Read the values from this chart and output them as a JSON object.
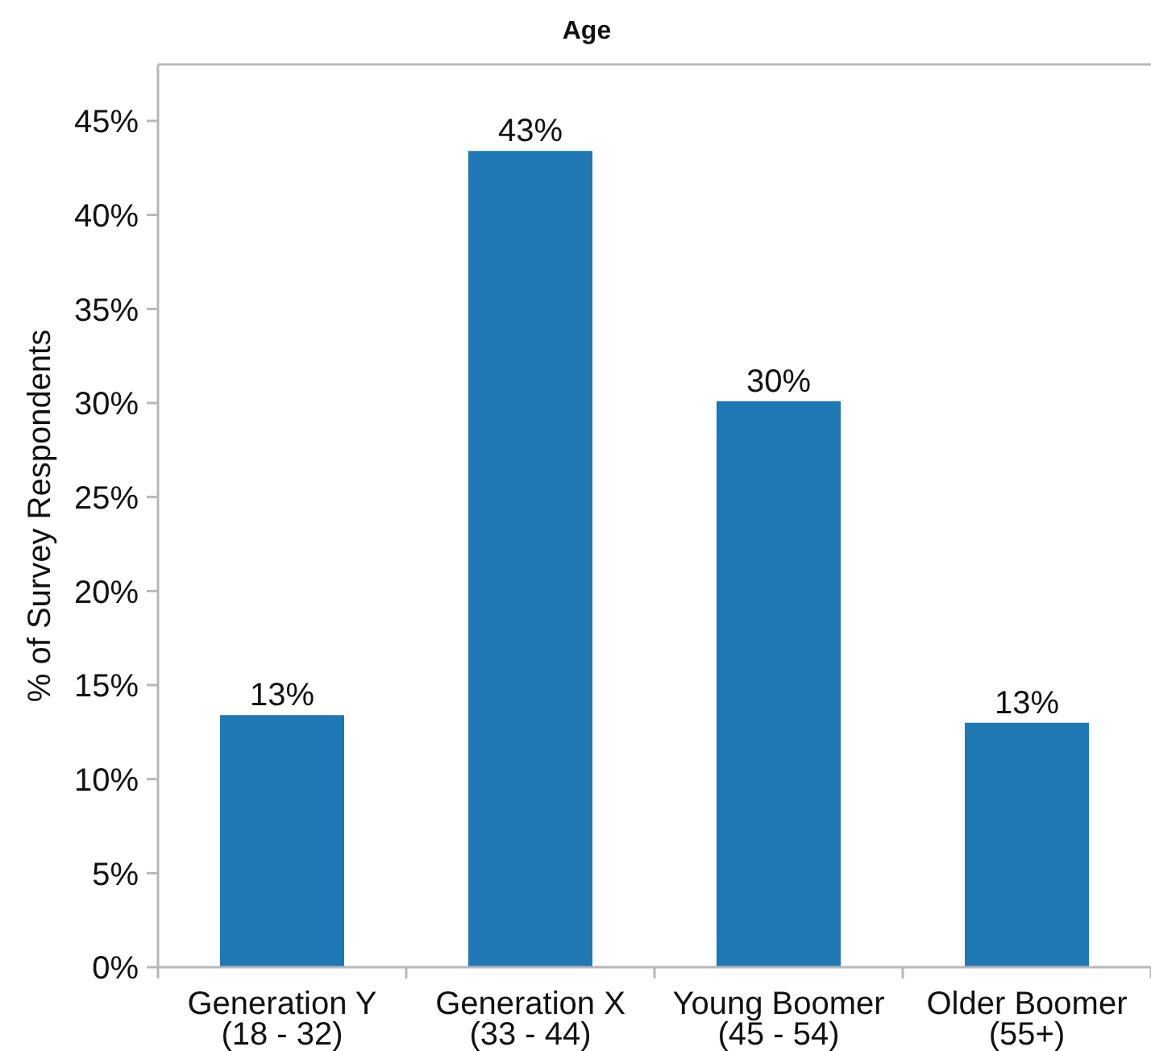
{
  "chart_data": {
    "type": "bar",
    "title": "Age",
    "ylabel": "% of Survey Respondents",
    "categories": [
      "Generation Y\n(18 - 32)",
      "Generation X\n(33 - 44)",
      "Young Boomer\n(45 - 54)",
      "Older Boomer\n(55+)"
    ],
    "values": [
      13.4,
      43.4,
      30.1,
      13.0
    ],
    "value_labels": [
      "13%",
      "43%",
      "30%",
      "13%"
    ],
    "color": "#1f77b4",
    "ylim": [
      0,
      48
    ],
    "yticks": [
      {
        "value": 0,
        "label": "0%"
      },
      {
        "value": 5,
        "label": "5%"
      },
      {
        "value": 10,
        "label": "10%"
      },
      {
        "value": 15,
        "label": "15%"
      },
      {
        "value": 20,
        "label": "20%"
      },
      {
        "value": 25,
        "label": "25%"
      },
      {
        "value": 30,
        "label": "30%"
      },
      {
        "value": 35,
        "label": "35%"
      },
      {
        "value": 40,
        "label": "40%"
      },
      {
        "value": 45,
        "label": "45%"
      }
    ]
  }
}
